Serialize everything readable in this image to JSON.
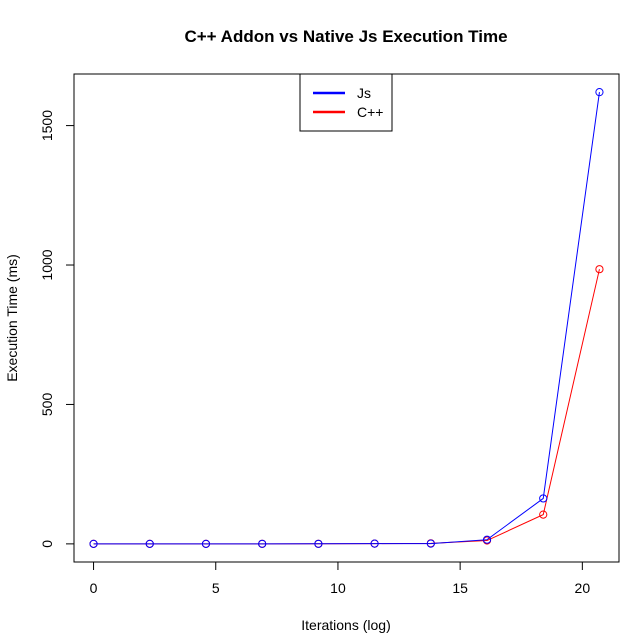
{
  "chart_data": {
    "type": "line",
    "title": "C++ Addon vs Native Js Execution Time",
    "xlabel": "Iterations (log)",
    "ylabel": "Execution Time (ms)",
    "xlim": [
      -0.8,
      21.5
    ],
    "ylim": [
      -65,
      1685
    ],
    "x_ticks": [
      "0",
      "5",
      "10",
      "15",
      "20"
    ],
    "y_ticks": [
      "0",
      "500",
      "1000",
      "1500"
    ],
    "x": [
      0,
      2.3,
      4.6,
      6.9,
      9.2,
      11.5,
      13.8,
      16.1,
      18.4,
      20.7
    ],
    "series": [
      {
        "name": "Js",
        "color": "#0000ff",
        "values": [
          0.1,
          0.1,
          0.1,
          0.2,
          0.3,
          1,
          1,
          15,
          163,
          1620
        ]
      },
      {
        "name": "C++",
        "color": "#ff0000",
        "values": [
          0.1,
          0.1,
          0.1,
          0.2,
          0.3,
          1,
          2,
          12,
          105,
          985
        ]
      }
    ],
    "legend_position": "top-center",
    "grid": false
  }
}
